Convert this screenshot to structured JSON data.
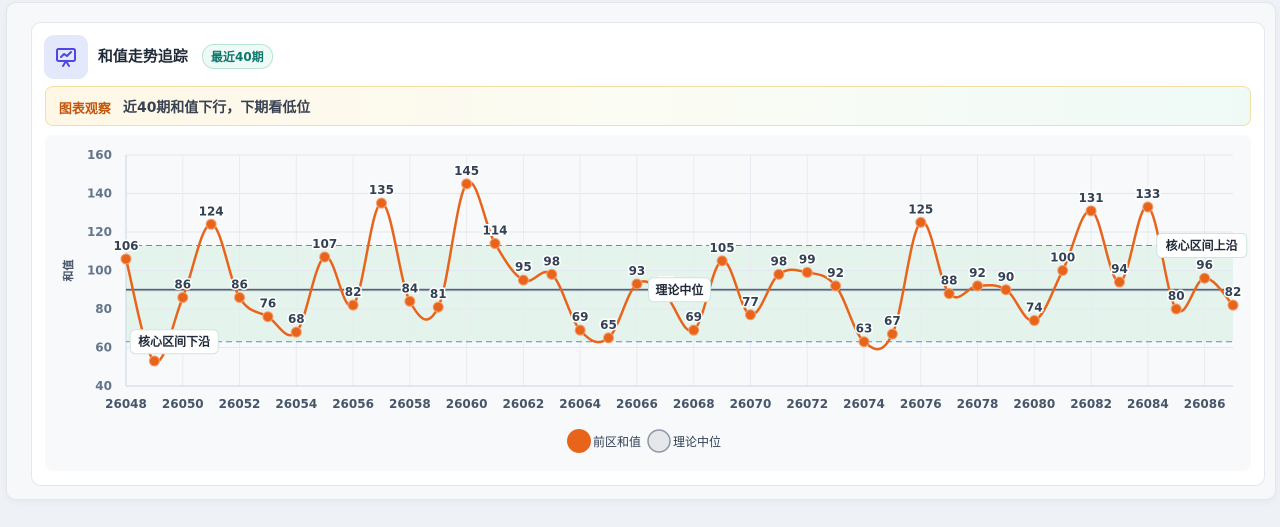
{
  "header": {
    "title": "和值走势追踪",
    "badge": "最近40期"
  },
  "observation": {
    "label": "图表观察",
    "text": "近40期和值下行，下期看低位"
  },
  "chart_data": {
    "type": "line",
    "ylabel": "和值",
    "ylim": [
      40,
      160
    ],
    "yticks": [
      40,
      60,
      80,
      100,
      120,
      140,
      160
    ],
    "x": [
      26048,
      26049,
      26050,
      26051,
      26052,
      26053,
      26054,
      26055,
      26056,
      26057,
      26058,
      26059,
      26060,
      26061,
      26062,
      26063,
      26064,
      26065,
      26066,
      26067,
      26068,
      26069,
      26070,
      26071,
      26072,
      26073,
      26074,
      26075,
      26076,
      26077,
      26078,
      26079,
      26080,
      26081,
      26082,
      26083,
      26084,
      26085,
      26086,
      26087
    ],
    "xtick_labels": [
      "26048",
      "26050",
      "26052",
      "26054",
      "26056",
      "26058",
      "26060",
      "26062",
      "26064",
      "26066",
      "26068",
      "26070",
      "26072",
      "26074",
      "26076",
      "26078",
      "26080",
      "26082",
      "26084",
      "26086"
    ],
    "series": [
      {
        "name": "前区和值",
        "color": "#e8641b",
        "values": [
          106,
          53,
          86,
          124,
          86,
          76,
          68,
          107,
          82,
          135,
          84,
          81,
          145,
          114,
          95,
          98,
          69,
          65,
          93,
          87,
          69,
          105,
          77,
          98,
          99,
          92,
          63,
          67,
          125,
          88,
          92,
          90,
          74,
          100,
          131,
          94,
          133,
          80,
          96,
          82
        ]
      }
    ],
    "reference_lines": [
      {
        "name": "理论中位",
        "value": 90,
        "color": "#475569",
        "style": "solid"
      },
      {
        "name": "核心区间上沿",
        "value": 113,
        "color": "#e06060",
        "style": "dashed"
      },
      {
        "name": "核心区间下沿",
        "value": 63,
        "color": "#5b8bd9",
        "style": "dashed"
      }
    ],
    "band": {
      "from": 63,
      "to": 113,
      "color": "#dff3ea"
    },
    "legend": [
      {
        "label": "前区和值",
        "color": "#e8641b"
      },
      {
        "label": "理论中位",
        "color": "#e5e7eb"
      }
    ],
    "legend_position": "bottom-center",
    "grid": true
  }
}
